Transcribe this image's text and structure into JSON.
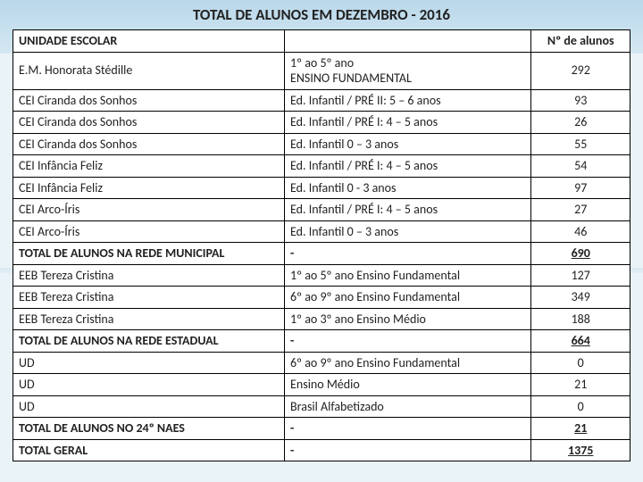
{
  "title": "TOTAL DE ALUNOS EM DEZEMBRO - 2016",
  "header": {
    "col_a": "UNIDADE ESCOLAR",
    "col_b": "",
    "col_c": "Nº de alunos"
  },
  "rows": [
    {
      "a": "E.M. Honorata Stédille",
      "b": "1º ao 5º ano\nENSINO FUNDAMENTAL",
      "c": "292",
      "bold_a": false
    },
    {
      "a": "CEI Ciranda dos Sonhos",
      "b": "Ed. Infantil / PRÉ II:  5 – 6 anos",
      "c": "93"
    },
    {
      "a": "CEI Ciranda dos Sonhos",
      "b": "Ed. Infantil / PRÉ I:  4 – 5 anos",
      "c": "26"
    },
    {
      "a": "CEI Ciranda dos Sonhos",
      "b": "Ed. Infantil 0 – 3 anos",
      "c": "55"
    },
    {
      "a": "CEI Infância Feliz",
      "b": "Ed. Infantil / PRÉ I: 4 – 5 anos",
      "c": "54"
    },
    {
      "a": "CEI Infância Feliz",
      "b": "Ed. Infantil 0 - 3 anos",
      "c": "97"
    },
    {
      "a": "CEI Arco-Íris",
      "b": "Ed. Infantil / PRÉ I: 4 – 5 anos",
      "c": "27"
    },
    {
      "a": "CEI Arco-Íris",
      "b": "Ed. Infantil 0 – 3 anos",
      "c": "46"
    },
    {
      "a": "TOTAL DE ALUNOS NA REDE MUNICIPAL",
      "b": "-",
      "c": "690",
      "total": true
    },
    {
      "a": "EEB Tereza Cristina",
      "b": "1º ao 5º ano Ensino Fundamental",
      "c": "127"
    },
    {
      "a": "EEB Tereza Cristina",
      "b": "6º ao 9º ano Ensino Fundamental",
      "c": "349"
    },
    {
      "a": "EEB Tereza Cristina",
      "b": "1º ao 3º ano Ensino Médio",
      "c": "188"
    },
    {
      "a": "TOTAL DE ALUNOS NA REDE ESTADUAL",
      "b": "-",
      "c": "664",
      "total": true
    },
    {
      "a": "UD",
      "b": "6º ao 9º ano Ensino Fundamental",
      "c": "0"
    },
    {
      "a": "UD",
      "b": "Ensino Médio",
      "c": "21"
    },
    {
      "a": "UD",
      "b": "Brasil Alfabetizado",
      "c": "0"
    },
    {
      "a": "TOTAL DE ALUNOS NO 24º NAES",
      "b": "-",
      "c": "21",
      "total": true
    },
    {
      "a": "TOTAL GERAL",
      "b": "-",
      "c": "1375",
      "total": true
    }
  ],
  "style": {
    "page_bg": "#eaf3f8",
    "border_color": "#000000",
    "text_color": "#222222",
    "title_fontsize": 17,
    "cell_fontsize": 14,
    "col_widths_pct": [
      44,
      40,
      16
    ]
  }
}
